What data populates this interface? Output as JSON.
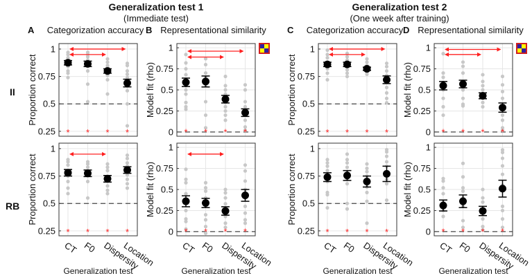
{
  "headers": [
    {
      "title": "Generalization test 1",
      "subtitle": "(Immediate test)"
    },
    {
      "title": "Generalization test 2",
      "subtitle": "(One week after training)"
    }
  ],
  "row_labels": [
    "II",
    "RB"
  ],
  "colors": {
    "mean": "#000000",
    "points": "#c8c8c8",
    "arrow": "#ff2020",
    "star": "#ff2020",
    "grid": "#e6e6e6",
    "icon_blue": "#3020a0",
    "icon_yellow": "#ffff00",
    "icon_border": "#d02020"
  },
  "chart_data": [
    {
      "id": "A-II",
      "letter": "A",
      "title": "Categorization accuracy",
      "type": "scatter",
      "ylabel": "Proportion correct",
      "xlabel": "Generalization test",
      "categories": [
        "CT",
        "F0",
        "Dispersity",
        "Location"
      ],
      "yticks": [
        "0.25",
        "0.5",
        "0.75",
        "1"
      ],
      "ylim": [
        0.205,
        1.05
      ],
      "chance": 0.5,
      "means": [
        0.875,
        0.865,
        0.8,
        0.69
      ],
      "errors": [
        0.02,
        0.025,
        0.02,
        0.035
      ],
      "points": [
        [
          0.97,
          0.95,
          0.92,
          0.9,
          0.88,
          0.86,
          0.84,
          0.8,
          0.78,
          0.74
        ],
        [
          0.97,
          0.95,
          0.93,
          0.9,
          0.88,
          0.85,
          0.8,
          0.68,
          0.52
        ],
        [
          0.91,
          0.88,
          0.85,
          0.83,
          0.8,
          0.78,
          0.76,
          0.72,
          0.59
        ],
        [
          0.87,
          0.85,
          0.8,
          0.77,
          0.74,
          0.71,
          0.68,
          0.66,
          0.62,
          0.5,
          0.3
        ]
      ],
      "arrows": [
        [
          1,
          4,
          1.0
        ],
        [
          1,
          3,
          0.95
        ]
      ],
      "stars_at": 0.25,
      "show_xticks": false,
      "icon": false
    },
    {
      "id": "B-II",
      "letter": "B",
      "title": "Representational similarity",
      "type": "scatter",
      "ylabel": "Model fit (rho)",
      "xlabel": "Generalization test",
      "categories": [
        "CT",
        "F0",
        "Dispersity",
        "Location"
      ],
      "yticks": [
        "0",
        "0.25",
        "0.5",
        "0.75",
        "1"
      ],
      "ylim": [
        -0.05,
        1.05
      ],
      "chance": 0,
      "means": [
        0.59,
        0.6,
        0.39,
        0.23
      ],
      "errors": [
        0.05,
        0.065,
        0.045,
        0.045
      ],
      "points": [
        [
          0.92,
          0.82,
          0.75,
          0.68,
          0.6,
          0.55,
          0.5,
          0.45,
          0.35,
          0.3,
          0.27
        ],
        [
          0.87,
          0.8,
          0.7,
          0.65,
          0.6,
          0.55,
          0.36,
          0.2,
          0.05
        ],
        [
          0.66,
          0.55,
          0.5,
          0.45,
          0.4,
          0.35,
          0.3,
          0.25,
          0.2,
          0.14
        ],
        [
          0.56,
          0.5,
          0.36,
          0.3,
          0.25,
          0.2,
          0.14,
          0.06,
          0.02
        ]
      ],
      "arrows": [
        [
          1,
          4,
          0.96
        ],
        [
          1,
          3,
          0.89
        ]
      ],
      "stars_at": 0.01,
      "show_xticks": false,
      "icon": true
    },
    {
      "id": "C-II",
      "letter": "C",
      "title": "Categorization accuracy",
      "type": "scatter",
      "ylabel": "Proportion correct",
      "xlabel": "Generalization test",
      "categories": [
        "CT",
        "F0",
        "Dispersity",
        "Location"
      ],
      "yticks": [
        "0.25",
        "0.5",
        "0.75",
        "1"
      ],
      "ylim": [
        0.205,
        1.05
      ],
      "chance": 0.5,
      "means": [
        0.86,
        0.86,
        0.82,
        0.72
      ],
      "errors": [
        0.02,
        0.02,
        0.015,
        0.035
      ],
      "points": [
        [
          0.99,
          0.95,
          0.92,
          0.88,
          0.85,
          0.82,
          0.78,
          0.72
        ],
        [
          0.96,
          0.93,
          0.9,
          0.87,
          0.84,
          0.81,
          0.78,
          0.75
        ],
        [
          0.91,
          0.88,
          0.85,
          0.82,
          0.79,
          0.77
        ],
        [
          0.87,
          0.84,
          0.8,
          0.76,
          0.7,
          0.65,
          0.6,
          0.55,
          0.51
        ]
      ],
      "arrows": [
        [
          1,
          4,
          1.0
        ],
        [
          1,
          3,
          0.95
        ]
      ],
      "stars_at": 0.25,
      "show_xticks": false,
      "icon": false
    },
    {
      "id": "D-II",
      "letter": "D",
      "title": "Representational similarity",
      "type": "scatter",
      "ylabel": "Model fit (rho)",
      "xlabel": "Generalization test",
      "categories": [
        "CT",
        "F0",
        "Dispersity",
        "Location"
      ],
      "yticks": [
        "0",
        "0.25",
        "0.5",
        "0.75",
        "1"
      ],
      "ylim": [
        -0.05,
        1.05
      ],
      "chance": 0,
      "means": [
        0.55,
        0.57,
        0.43,
        0.29
      ],
      "errors": [
        0.05,
        0.045,
        0.035,
        0.055
      ],
      "points": [
        [
          0.93,
          0.7,
          0.65,
          0.55,
          0.5,
          0.4,
          0.3,
          0.2
        ],
        [
          0.83,
          0.78,
          0.7,
          0.6,
          0.55,
          0.5,
          0.4,
          0.33,
          0.31
        ],
        [
          0.68,
          0.6,
          0.55,
          0.5,
          0.45,
          0.4,
          0.35,
          0.3
        ],
        [
          0.66,
          0.56,
          0.48,
          0.4,
          0.3,
          0.2,
          0.14,
          0.05,
          0.02
        ]
      ],
      "arrows": [
        [
          1,
          4,
          0.98
        ],
        [
          1,
          3,
          0.92
        ]
      ],
      "stars_at": 0.01,
      "show_xticks": false,
      "icon": true
    },
    {
      "id": "A-RB",
      "letter": "",
      "title": "",
      "type": "scatter",
      "ylabel": "Proportion correct",
      "xlabel": "Generalization test",
      "categories": [
        "CT",
        "F0",
        "Dispersity",
        "Location"
      ],
      "yticks": [
        "0.25",
        "0.5",
        "0.75",
        "1"
      ],
      "ylim": [
        0.205,
        1.05
      ],
      "chance": 0.5,
      "means": [
        0.78,
        0.775,
        0.725,
        0.805
      ],
      "errors": [
        0.03,
        0.03,
        0.03,
        0.03
      ],
      "points": [
        [
          0.9,
          0.88,
          0.85,
          0.8,
          0.75,
          0.7,
          0.64,
          0.59
        ],
        [
          0.88,
          0.86,
          0.83,
          0.8,
          0.75,
          0.7,
          0.55
        ],
        [
          0.86,
          0.83,
          0.8,
          0.75,
          0.7,
          0.66,
          0.62,
          0.59
        ],
        [
          0.94,
          0.91,
          0.87,
          0.84,
          0.8,
          0.76,
          0.72,
          0.68,
          0.64
        ]
      ],
      "arrows": [
        [
          1,
          3,
          0.95
        ]
      ],
      "stars_at": 0.25,
      "show_xticks": true,
      "icon": false
    },
    {
      "id": "B-RB",
      "letter": "",
      "title": "",
      "type": "scatter",
      "ylabel": "Model fit (rho)",
      "xlabel": "Generalization test",
      "categories": [
        "CT",
        "F0",
        "Dispersity",
        "Location"
      ],
      "yticks": [
        "0",
        "0.25",
        "0.5",
        "0.75",
        "1"
      ],
      "ylim": [
        -0.05,
        1.05
      ],
      "chance": 0,
      "means": [
        0.36,
        0.34,
        0.245,
        0.43
      ],
      "errors": [
        0.065,
        0.055,
        0.05,
        0.07
      ],
      "points": [
        [
          0.74,
          0.62,
          0.58,
          0.45,
          0.35,
          0.25,
          0.15,
          0.12,
          0.03
        ],
        [
          0.58,
          0.52,
          0.48,
          0.4,
          0.3,
          0.2,
          0.14,
          0.06,
          -0.02
        ],
        [
          0.5,
          0.46,
          0.4,
          0.33,
          0.25,
          0.18,
          0.1,
          0.05
        ],
        [
          0.79,
          0.72,
          0.6,
          0.5,
          0.4,
          0.3,
          0.22,
          0.14,
          0.1
        ]
      ],
      "arrows": [
        [
          1,
          3,
          0.92
        ]
      ],
      "stars_at": 0.01,
      "show_xticks": true,
      "icon": false
    },
    {
      "id": "C-RB",
      "letter": "",
      "title": "",
      "type": "scatter",
      "ylabel": "Proportion correct",
      "xlabel": "Generalization test",
      "categories": [
        "CT",
        "F0",
        "Dispersity",
        "Location"
      ],
      "yticks": [
        "0.25",
        "0.5",
        "0.75",
        "1"
      ],
      "ylim": [
        0.205,
        1.05
      ],
      "chance": 0.5,
      "means": [
        0.74,
        0.755,
        0.7,
        0.77
      ],
      "errors": [
        0.04,
        0.045,
        0.05,
        0.07
      ],
      "points": [
        [
          0.9,
          0.87,
          0.84,
          0.8,
          0.75,
          0.7,
          0.6,
          0.58,
          0.46
        ],
        [
          0.95,
          0.9,
          0.87,
          0.83,
          0.78,
          0.72,
          0.68,
          0.5,
          0.45
        ],
        [
          0.86,
          0.82,
          0.79,
          0.75,
          0.7,
          0.65,
          0.6,
          0.52,
          0.32
        ],
        [
          0.99,
          0.97,
          0.93,
          0.88,
          0.84,
          0.78,
          0.72,
          0.68,
          0.53
        ]
      ],
      "arrows": [],
      "stars_at": 0.25,
      "show_xticks": true,
      "icon": false
    },
    {
      "id": "D-RB",
      "letter": "",
      "title": "",
      "type": "scatter",
      "ylabel": "Model fit (rho)",
      "xlabel": "Generalization test",
      "categories": [
        "CT",
        "F0",
        "Dispersity",
        "Location"
      ],
      "yticks": [
        "0",
        "0.25",
        "0.5",
        "0.75",
        "1"
      ],
      "ylim": [
        -0.05,
        1.05
      ],
      "chance": 0,
      "means": [
        0.31,
        0.36,
        0.245,
        0.51
      ],
      "errors": [
        0.065,
        0.075,
        0.055,
        0.1
      ],
      "points": [
        [
          0.63,
          0.6,
          0.52,
          0.45,
          0.35,
          0.25,
          0.18
        ],
        [
          0.81,
          0.65,
          0.52,
          0.48,
          0.4,
          0.3,
          0.13,
          0.05
        ],
        [
          0.5,
          0.4,
          0.35,
          0.25,
          0.15,
          0.06,
          0.02
        ],
        [
          0.97,
          0.94,
          0.87,
          0.78,
          0.68,
          0.55,
          0.3,
          0.25,
          0.15,
          0.05
        ]
      ],
      "arrows": [],
      "stars_at": 0.01,
      "show_xticks": true,
      "icon": false
    }
  ]
}
